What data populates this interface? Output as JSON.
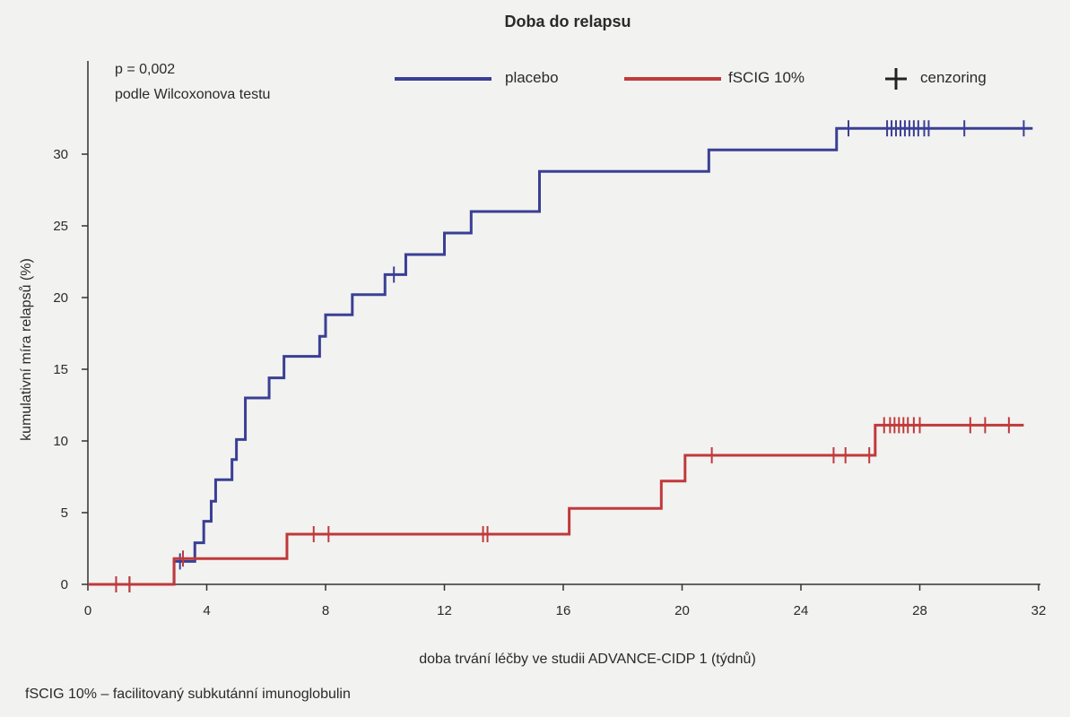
{
  "chart_data": {
    "type": "line",
    "title": "Doba do relapsu",
    "xlabel": "doba trvání léčby ve studii ADVANCE-CIDP 1 (týdnů)",
    "ylabel": "kumulativní míra relapsů (%)",
    "xlim": [
      0,
      32
    ],
    "ylim": [
      0,
      32
    ],
    "x_ticks": [
      0,
      4,
      8,
      12,
      16,
      20,
      24,
      28,
      32
    ],
    "y_ticks": [
      0,
      5,
      10,
      15,
      20,
      25,
      30
    ],
    "grid": false,
    "legend_position": "top",
    "annotation": {
      "line1": "p = 0,002",
      "line2": "podle Wilcoxonova testu"
    },
    "censoring_label": "cenzoring",
    "series": [
      {
        "name": "placebo",
        "color": "#3a3f95",
        "steps": [
          [
            0,
            0
          ],
          [
            2.9,
            1.6
          ],
          [
            3.6,
            2.9
          ],
          [
            3.9,
            4.4
          ],
          [
            4.15,
            5.8
          ],
          [
            4.3,
            7.3
          ],
          [
            4.85,
            8.7
          ],
          [
            5.0,
            10.1
          ],
          [
            5.3,
            13.0
          ],
          [
            6.1,
            14.4
          ],
          [
            6.6,
            15.9
          ],
          [
            7.8,
            17.3
          ],
          [
            8.0,
            18.8
          ],
          [
            8.9,
            20.2
          ],
          [
            10.0,
            21.6
          ],
          [
            10.7,
            23.0
          ],
          [
            12.0,
            24.5
          ],
          [
            12.9,
            26.0
          ],
          [
            15.2,
            28.8
          ],
          [
            20.9,
            30.3
          ],
          [
            25.2,
            31.8
          ],
          [
            31.8,
            31.8
          ]
        ],
        "censor_x": [
          0.95,
          1.4,
          3.1,
          10.3,
          25.6,
          26.9,
          27.05,
          27.2,
          27.35,
          27.5,
          27.65,
          27.8,
          27.95,
          28.15,
          28.3,
          29.5,
          31.5
        ]
      },
      {
        "name": "fSCIG 10%",
        "color": "#c0393b",
        "steps": [
          [
            0,
            0
          ],
          [
            2.9,
            1.8
          ],
          [
            6.7,
            3.5
          ],
          [
            16.2,
            5.3
          ],
          [
            19.3,
            7.2
          ],
          [
            20.1,
            9.0
          ],
          [
            26.5,
            11.1
          ],
          [
            31.5,
            11.1
          ]
        ],
        "censor_x": [
          0.95,
          1.4,
          3.2,
          7.6,
          8.1,
          13.3,
          13.45,
          21.0,
          25.1,
          25.5,
          26.3,
          26.8,
          27.0,
          27.15,
          27.3,
          27.45,
          27.6,
          27.8,
          28.0,
          29.7,
          30.2,
          31.0
        ]
      }
    ]
  },
  "footnote": "fSCIG 10% – facilitovaný subkutánní imunoglobulin"
}
